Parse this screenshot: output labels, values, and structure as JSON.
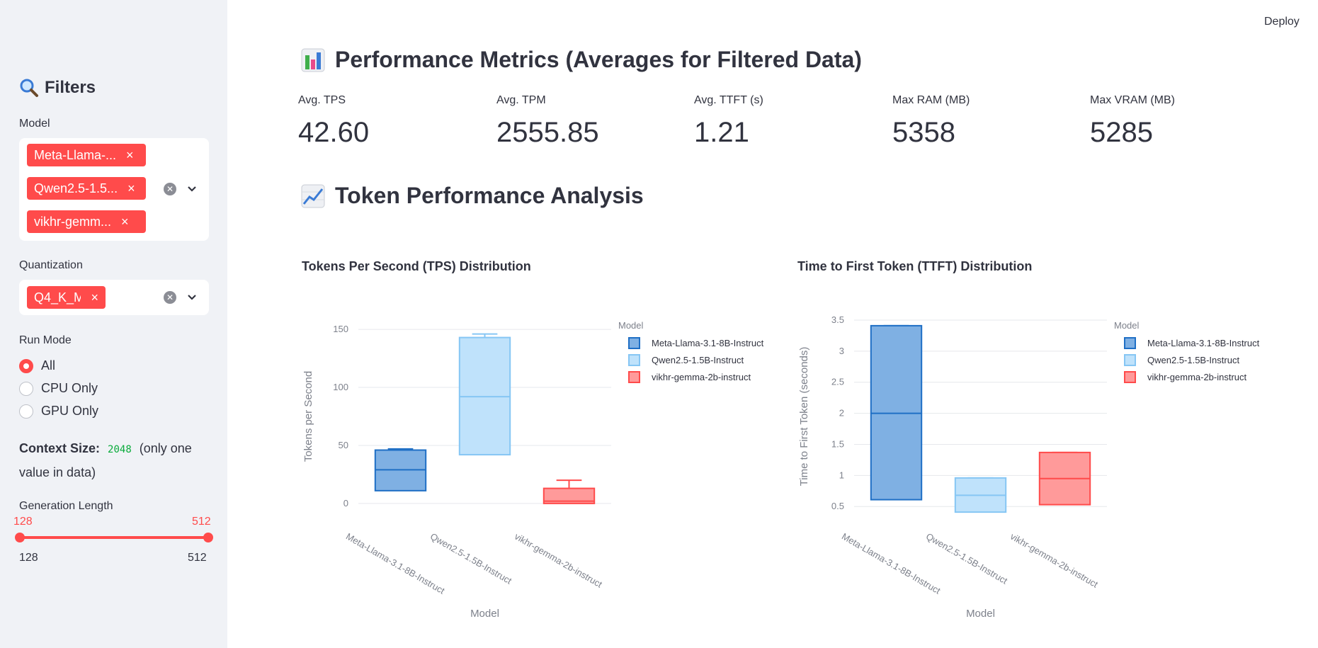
{
  "sidebar": {
    "title": "Filters",
    "model_label": "Model",
    "model_tags": [
      "Meta-Llama-...",
      "Qwen2.5-1.5...",
      "vikhr-gemm..."
    ],
    "quant_label": "Quantization",
    "quant_tags": [
      "Q4_K_M"
    ],
    "run_mode_label": "Run Mode",
    "run_modes": [
      "All",
      "CPU Only",
      "GPU Only"
    ],
    "run_mode_selected": "All",
    "context_label": "Context Size:",
    "context_value": "2048",
    "context_note": "(only one value in data)",
    "genlen_label": "Generation Length",
    "genlen_low": "128",
    "genlen_high": "512",
    "genlen_min": "128",
    "genlen_max": "512",
    "accent_color": "#ff4b4b"
  },
  "header": {
    "deploy_label": "Deploy"
  },
  "metrics_section": {
    "title": "Performance Metrics (Averages for Filtered Data)",
    "icon": "bar-chart-icon",
    "metrics": [
      {
        "label": "Avg. TPS",
        "value": "42.60"
      },
      {
        "label": "Avg. TPM",
        "value": "2555.85"
      },
      {
        "label": "Avg. TTFT (s)",
        "value": "1.21"
      },
      {
        "label": "Max RAM (MB)",
        "value": "5358"
      },
      {
        "label": "Max VRAM (MB)",
        "value": "5285"
      }
    ]
  },
  "token_section": {
    "title": "Token Performance Analysis",
    "icon": "line-chart-icon"
  },
  "chart_data": [
    {
      "type": "box",
      "title": "Tokens Per Second (TPS) Distribution",
      "xlabel": "Model",
      "ylabel": "Tokens per Second",
      "ylim": [
        -8,
        158
      ],
      "yticks": [
        0,
        50,
        100,
        150
      ],
      "legend_title": "Model",
      "legend_position": "top-right",
      "categories": [
        "Meta-Llama-3.1-8B-Instruct",
        "Qwen2.5-1.5B-Instruct",
        "vikhr-gemma-2b-instruct"
      ],
      "colors": [
        "#1f6fc5",
        "#86c6f4",
        "#ff4b4b"
      ],
      "fills": [
        "#7fb0e3",
        "#bfe2fb",
        "#ff9a9a"
      ],
      "series": [
        {
          "name": "Meta-Llama-3.1-8B-Instruct",
          "min": 11,
          "q1": 11,
          "median": 29,
          "q3": 46,
          "max": 47
        },
        {
          "name": "Qwen2.5-1.5B-Instruct",
          "min": 42,
          "q1": 42,
          "median": 92,
          "q3": 143,
          "max": 146
        },
        {
          "name": "vikhr-gemma-2b-instruct",
          "min": 0,
          "q1": 0,
          "median": 2,
          "q3": 13,
          "max": 20
        }
      ]
    },
    {
      "type": "box",
      "title": "Time to First Token (TTFT) Distribution",
      "xlabel": "Model",
      "ylabel": "Time to First Token (seconds)",
      "ylim": [
        0.4,
        3.5
      ],
      "yticks": [
        0.5,
        1,
        1.5,
        2,
        2.5,
        3,
        3.5
      ],
      "legend_title": "Model",
      "legend_position": "top-right",
      "categories": [
        "Meta-Llama-3.1-8B-Instruct",
        "Qwen2.5-1.5B-Instruct",
        "vikhr-gemma-2b-instruct"
      ],
      "colors": [
        "#1f6fc5",
        "#86c6f4",
        "#ff4b4b"
      ],
      "fills": [
        "#7fb0e3",
        "#bfe2fb",
        "#ff9a9a"
      ],
      "series": [
        {
          "name": "Meta-Llama-3.1-8B-Instruct",
          "min": 0.61,
          "q1": 0.61,
          "median": 2.0,
          "q3": 3.41,
          "max": 3.41
        },
        {
          "name": "Qwen2.5-1.5B-Instruct",
          "min": 0.41,
          "q1": 0.41,
          "median": 0.68,
          "q3": 0.96,
          "max": 0.96
        },
        {
          "name": "vikhr-gemma-2b-instruct",
          "min": 0.53,
          "q1": 0.53,
          "median": 0.95,
          "q3": 1.37,
          "max": 1.37
        }
      ]
    }
  ]
}
